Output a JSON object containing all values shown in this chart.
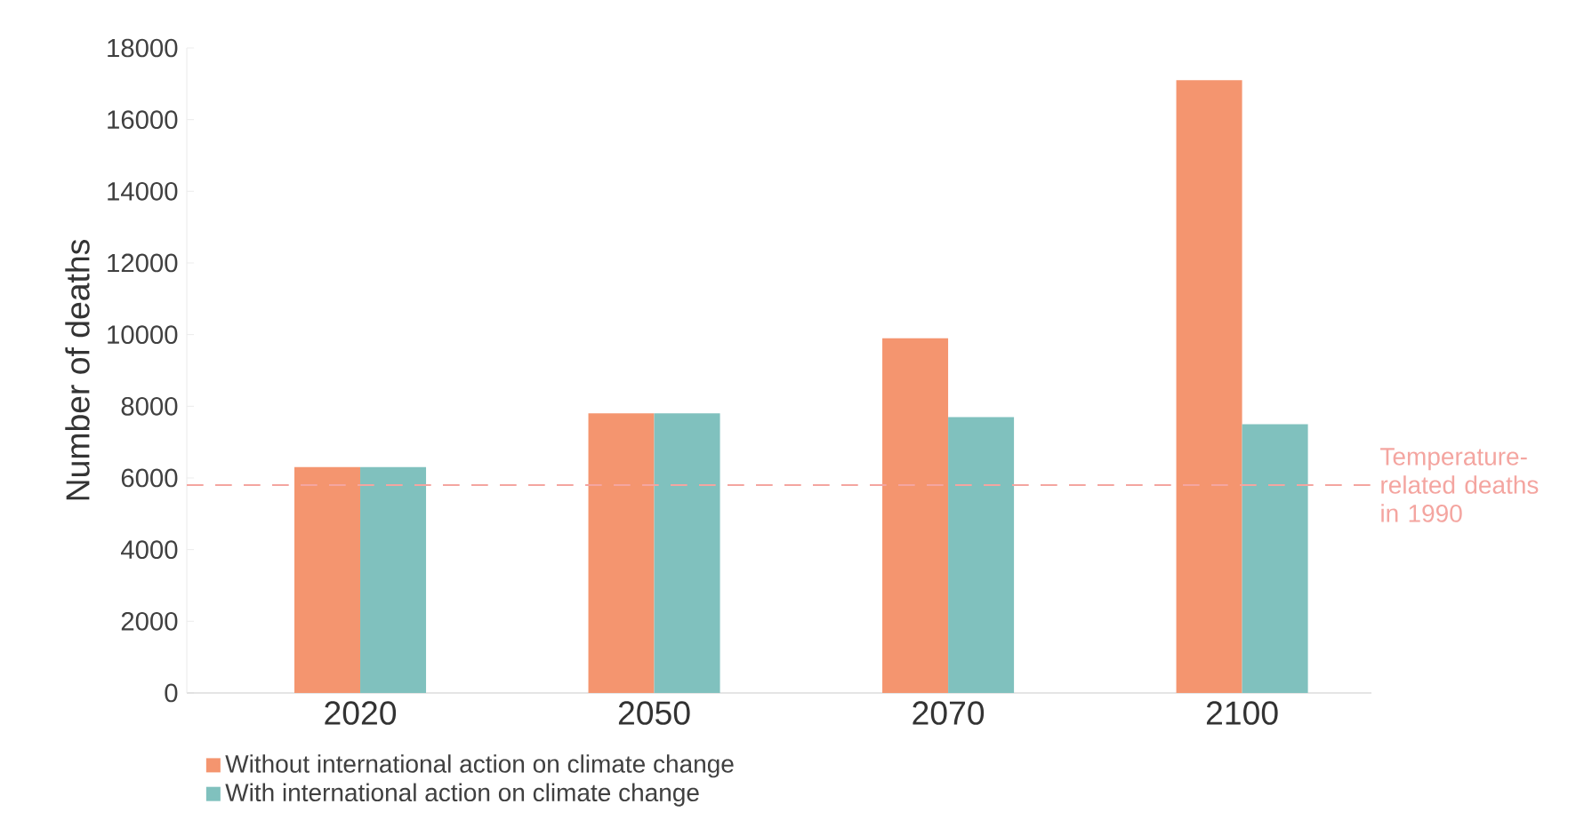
{
  "chart_data": {
    "type": "bar",
    "ylabel": "Number of deaths",
    "categories": [
      "2020",
      "2050",
      "2070",
      "2100"
    ],
    "series": [
      {
        "name": "Without international action on climate change",
        "color": "#f4956f",
        "values": [
          6300,
          7800,
          9900,
          17100
        ]
      },
      {
        "name": "With international action on climate change",
        "color": "#80c1be",
        "values": [
          6300,
          7800,
          7700,
          7500
        ]
      }
    ],
    "ylim": [
      0,
      18000
    ],
    "yticks": [
      0,
      2000,
      4000,
      6000,
      8000,
      10000,
      12000,
      14000,
      16000,
      18000
    ],
    "ref_lines": [
      {
        "axis": "y",
        "value": 5800,
        "label": "Temperature-related deaths in 1990",
        "color": "#f4a5a0",
        "line_style": "dashed"
      }
    ],
    "grid": false,
    "legend": "bottom left"
  }
}
